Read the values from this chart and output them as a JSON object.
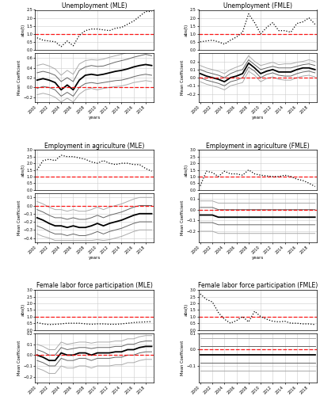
{
  "titles": [
    "Unemployment (MLE)",
    "Unemployment (FMLE)",
    "Employment in agriculture (MLE)",
    "Employment in agriculture (FMLE)",
    "Female labor force participation (MLE)",
    "Female labor force participation (FMLE)"
  ],
  "years": [
    2000,
    2001,
    2002,
    2003,
    2004,
    2005,
    2006,
    2007,
    2008,
    2009,
    2010,
    2011,
    2012,
    2013,
    2014,
    2015,
    2016,
    2017,
    2018,
    2019
  ],
  "red_dashed_value": 1.0,
  "red_dashed_coef": 0.0,
  "panels": [
    {
      "abs_t": [
        0.75,
        0.6,
        0.55,
        0.5,
        0.2,
        0.55,
        0.25,
        0.9,
        1.2,
        1.3,
        1.3,
        1.25,
        1.2,
        1.35,
        1.4,
        1.6,
        1.8,
        2.1,
        2.4,
        2.4
      ],
      "coef_main": [
        0.15,
        0.18,
        0.15,
        0.1,
        -0.05,
        0.05,
        -0.05,
        0.15,
        0.25,
        0.27,
        0.25,
        0.27,
        0.3,
        0.33,
        0.35,
        0.38,
        0.42,
        0.45,
        0.47,
        0.45
      ],
      "coef_upper1": [
        0.3,
        0.33,
        0.3,
        0.25,
        0.12,
        0.2,
        0.12,
        0.35,
        0.42,
        0.45,
        0.43,
        0.44,
        0.48,
        0.52,
        0.55,
        0.58,
        0.62,
        0.65,
        0.68,
        0.65
      ],
      "coef_upper2": [
        0.45,
        0.48,
        0.44,
        0.38,
        0.25,
        0.35,
        0.27,
        0.48,
        0.55,
        0.57,
        0.56,
        0.58,
        0.62,
        0.65,
        0.68,
        0.72,
        0.75,
        0.78,
        0.82,
        0.78
      ],
      "coef_lower1": [
        -0.02,
        0.02,
        0.0,
        -0.05,
        -0.18,
        -0.1,
        -0.18,
        0.0,
        0.08,
        0.1,
        0.08,
        0.1,
        0.12,
        0.14,
        0.15,
        0.18,
        0.22,
        0.25,
        0.27,
        0.25
      ],
      "coef_lower2": [
        -0.15,
        -0.12,
        -0.15,
        -0.2,
        -0.3,
        -0.22,
        -0.3,
        -0.14,
        -0.05,
        -0.02,
        -0.05,
        -0.02,
        0.0,
        0.02,
        0.03,
        0.06,
        0.1,
        0.12,
        0.14,
        0.12
      ],
      "abs_ylim": [
        0,
        2.5
      ],
      "abs_yticks": [
        0.0,
        0.5,
        1.0,
        1.5,
        2.0,
        2.5
      ],
      "coef_ylim": [
        -0.3,
        0.7
      ],
      "coef_yticks": [
        -0.2,
        0.0,
        0.2,
        0.4,
        0.6
      ]
    },
    {
      "abs_t": [
        0.5,
        0.55,
        0.6,
        0.5,
        0.35,
        0.6,
        0.8,
        1.1,
        2.25,
        1.7,
        1.0,
        1.4,
        1.7,
        1.2,
        1.2,
        1.1,
        1.65,
        1.75,
        2.0,
        1.6
      ],
      "coef_main": [
        0.05,
        0.02,
        0.0,
        -0.02,
        -0.05,
        0.0,
        0.02,
        0.05,
        0.18,
        0.12,
        0.05,
        0.08,
        0.1,
        0.07,
        0.07,
        0.07,
        0.1,
        0.12,
        0.12,
        0.1
      ],
      "coef_upper1": [
        0.1,
        0.07,
        0.05,
        0.03,
        0.0,
        0.05,
        0.08,
        0.1,
        0.22,
        0.16,
        0.1,
        0.12,
        0.14,
        0.12,
        0.12,
        0.12,
        0.14,
        0.16,
        0.17,
        0.15
      ],
      "coef_upper2": [
        0.15,
        0.12,
        0.1,
        0.08,
        0.05,
        0.1,
        0.13,
        0.16,
        0.27,
        0.2,
        0.15,
        0.17,
        0.19,
        0.16,
        0.17,
        0.17,
        0.19,
        0.2,
        0.22,
        0.2
      ],
      "coef_lower1": [
        0.0,
        -0.03,
        -0.05,
        -0.07,
        -0.1,
        -0.05,
        -0.03,
        0.0,
        0.13,
        0.08,
        0.0,
        0.04,
        0.06,
        0.03,
        0.02,
        0.02,
        0.05,
        0.07,
        0.08,
        0.06
      ],
      "coef_lower2": [
        -0.05,
        -0.08,
        -0.1,
        -0.12,
        -0.15,
        -0.1,
        -0.08,
        -0.06,
        0.08,
        0.03,
        -0.05,
        -0.01,
        0.01,
        -0.02,
        -0.03,
        -0.03,
        0.0,
        0.02,
        0.03,
        0.01
      ],
      "abs_ylim": [
        0,
        2.5
      ],
      "abs_yticks": [
        0.0,
        0.5,
        1.0,
        1.5,
        2.0,
        2.5
      ],
      "coef_ylim": [
        -0.3,
        0.3
      ],
      "coef_yticks": [
        -0.2,
        -0.1,
        0.0,
        0.1,
        0.2
      ]
    },
    {
      "abs_t": [
        1.5,
        2.2,
        2.3,
        2.2,
        2.6,
        2.5,
        2.5,
        2.4,
        2.3,
        2.1,
        2.0,
        2.2,
        2.0,
        1.9,
        2.0,
        2.0,
        1.9,
        1.9,
        1.6,
        1.4
      ],
      "coef_main": [
        -0.15,
        -0.18,
        -0.22,
        -0.25,
        -0.25,
        -0.27,
        -0.25,
        -0.27,
        -0.27,
        -0.25,
        -0.22,
        -0.25,
        -0.22,
        -0.2,
        -0.18,
        -0.15,
        -0.12,
        -0.1,
        -0.1,
        -0.1
      ],
      "coef_upper1": [
        -0.05,
        -0.08,
        -0.12,
        -0.15,
        -0.15,
        -0.17,
        -0.15,
        -0.17,
        -0.17,
        -0.15,
        -0.12,
        -0.15,
        -0.12,
        -0.1,
        -0.08,
        -0.05,
        -0.02,
        0.0,
        0.0,
        0.0
      ],
      "coef_upper2": [
        0.05,
        0.02,
        -0.02,
        -0.05,
        -0.05,
        -0.07,
        -0.05,
        -0.07,
        -0.07,
        -0.05,
        -0.02,
        -0.05,
        -0.02,
        0.0,
        0.02,
        0.05,
        0.08,
        0.1,
        0.1,
        0.1
      ],
      "coef_lower1": [
        -0.25,
        -0.28,
        -0.32,
        -0.35,
        -0.35,
        -0.37,
        -0.35,
        -0.37,
        -0.37,
        -0.35,
        -0.32,
        -0.35,
        -0.32,
        -0.3,
        -0.28,
        -0.25,
        -0.22,
        -0.2,
        -0.2,
        -0.2
      ],
      "coef_lower2": [
        -0.35,
        -0.38,
        -0.4,
        -0.43,
        -0.43,
        -0.43,
        -0.43,
        -0.43,
        -0.43,
        -0.43,
        -0.42,
        -0.43,
        -0.42,
        -0.4,
        -0.38,
        -0.35,
        -0.32,
        -0.3,
        -0.3,
        -0.3
      ],
      "abs_ylim": [
        0,
        3.0
      ],
      "abs_yticks": [
        0.0,
        0.5,
        1.0,
        1.5,
        2.0,
        2.5,
        3.0
      ],
      "coef_ylim": [
        -0.45,
        0.15
      ],
      "coef_yticks": [
        -0.4,
        -0.3,
        -0.2,
        -0.1,
        0.0,
        0.1
      ]
    },
    {
      "abs_t": [
        0.3,
        1.4,
        1.3,
        1.0,
        1.4,
        1.2,
        1.2,
        1.1,
        1.5,
        1.2,
        1.1,
        1.05,
        1.0,
        1.0,
        1.1,
        1.0,
        0.8,
        0.7,
        0.5,
        0.25
      ],
      "coef_main": [
        -0.05,
        -0.05,
        -0.05,
        -0.07,
        -0.07,
        -0.07,
        -0.07,
        -0.07,
        -0.07,
        -0.07,
        -0.07,
        -0.07,
        -0.07,
        -0.07,
        -0.07,
        -0.07,
        -0.07,
        -0.07,
        -0.07,
        -0.07
      ],
      "coef_upper1": [
        0.02,
        0.02,
        0.02,
        0.0,
        0.0,
        0.0,
        0.0,
        0.0,
        0.0,
        0.0,
        0.0,
        0.0,
        0.0,
        0.0,
        0.0,
        0.0,
        0.0,
        0.0,
        0.0,
        0.0
      ],
      "coef_upper2": [
        0.08,
        0.08,
        0.08,
        0.06,
        0.06,
        0.06,
        0.06,
        0.06,
        0.06,
        0.06,
        0.06,
        0.06,
        0.06,
        0.06,
        0.06,
        0.06,
        0.06,
        0.06,
        0.06,
        0.06
      ],
      "coef_lower1": [
        -0.12,
        -0.12,
        -0.12,
        -0.14,
        -0.14,
        -0.14,
        -0.14,
        -0.14,
        -0.14,
        -0.14,
        -0.14,
        -0.14,
        -0.14,
        -0.14,
        -0.14,
        -0.14,
        -0.14,
        -0.14,
        -0.14,
        -0.14
      ],
      "coef_lower2": [
        -0.2,
        -0.2,
        -0.2,
        -0.22,
        -0.22,
        -0.22,
        -0.22,
        -0.22,
        -0.22,
        -0.22,
        -0.22,
        -0.22,
        -0.22,
        -0.22,
        -0.22,
        -0.22,
        -0.22,
        -0.22,
        -0.22,
        -0.22
      ],
      "abs_ylim": [
        0,
        3.0
      ],
      "abs_yticks": [
        0.0,
        0.5,
        1.0,
        1.5,
        2.0,
        2.5,
        3.0
      ],
      "coef_ylim": [
        -0.3,
        0.15
      ],
      "coef_yticks": [
        -0.2,
        -0.1,
        0.0,
        0.1
      ]
    },
    {
      "abs_t": [
        0.55,
        0.45,
        0.4,
        0.42,
        0.45,
        0.5,
        0.5,
        0.5,
        0.45,
        0.42,
        0.45,
        0.45,
        0.42,
        0.42,
        0.45,
        0.5,
        0.55,
        0.58,
        0.6,
        0.62
      ],
      "coef_main": [
        0.0,
        -0.02,
        -0.05,
        -0.05,
        0.02,
        0.0,
        0.0,
        0.02,
        0.02,
        0.0,
        0.02,
        0.02,
        0.02,
        0.03,
        0.03,
        0.05,
        0.05,
        0.07,
        0.08,
        0.08
      ],
      "coef_upper1": [
        0.05,
        0.03,
        0.0,
        0.0,
        0.07,
        0.05,
        0.06,
        0.07,
        0.07,
        0.06,
        0.07,
        0.07,
        0.07,
        0.08,
        0.08,
        0.1,
        0.1,
        0.12,
        0.13,
        0.13
      ],
      "coef_upper2": [
        0.1,
        0.08,
        0.05,
        0.05,
        0.12,
        0.1,
        0.11,
        0.12,
        0.12,
        0.11,
        0.12,
        0.12,
        0.12,
        0.13,
        0.13,
        0.15,
        0.15,
        0.17,
        0.18,
        0.18
      ],
      "coef_lower1": [
        -0.05,
        -0.07,
        -0.1,
        -0.1,
        -0.03,
        -0.05,
        -0.05,
        -0.03,
        -0.03,
        -0.05,
        -0.03,
        -0.03,
        -0.03,
        -0.02,
        -0.02,
        0.0,
        0.0,
        0.02,
        0.03,
        0.03
      ],
      "coef_lower2": [
        -0.12,
        -0.14,
        -0.17,
        -0.17,
        -0.1,
        -0.12,
        -0.12,
        -0.1,
        -0.1,
        -0.12,
        -0.1,
        -0.1,
        -0.1,
        -0.09,
        -0.09,
        -0.07,
        -0.07,
        -0.05,
        -0.04,
        -0.04
      ],
      "abs_ylim": [
        0,
        3.0
      ],
      "abs_yticks": [
        0.0,
        0.5,
        1.0,
        1.5,
        2.0,
        2.5,
        3.0
      ],
      "coef_ylim": [
        -0.25,
        0.2
      ],
      "coef_yticks": [
        -0.2,
        -0.1,
        0.0,
        0.1,
        0.2
      ]
    },
    {
      "abs_t": [
        2.7,
        2.3,
        2.1,
        1.3,
        0.8,
        0.5,
        0.7,
        1.0,
        0.6,
        1.4,
        1.0,
        0.8,
        0.65,
        0.6,
        0.65,
        0.5,
        0.5,
        0.45,
        0.45,
        0.4
      ],
      "coef_main": [
        -0.03,
        -0.03,
        -0.03,
        -0.03,
        -0.03,
        -0.03,
        -0.03,
        -0.03,
        -0.03,
        -0.03,
        -0.03,
        -0.03,
        -0.03,
        -0.03,
        -0.03,
        -0.03,
        -0.03,
        -0.03,
        -0.03,
        -0.03
      ],
      "coef_upper1": [
        0.02,
        0.02,
        0.02,
        0.02,
        0.02,
        0.02,
        0.02,
        0.02,
        0.02,
        0.02,
        0.02,
        0.02,
        0.02,
        0.02,
        0.02,
        0.02,
        0.02,
        0.02,
        0.02,
        0.02
      ],
      "coef_upper2": [
        0.07,
        0.07,
        0.07,
        0.07,
        0.07,
        0.07,
        0.07,
        0.07,
        0.07,
        0.07,
        0.07,
        0.07,
        0.07,
        0.07,
        0.07,
        0.07,
        0.07,
        0.07,
        0.07,
        0.07
      ],
      "coef_lower1": [
        -0.08,
        -0.08,
        -0.08,
        -0.08,
        -0.08,
        -0.08,
        -0.08,
        -0.08,
        -0.08,
        -0.08,
        -0.08,
        -0.08,
        -0.08,
        -0.08,
        -0.08,
        -0.08,
        -0.08,
        -0.08,
        -0.08,
        -0.08
      ],
      "coef_lower2": [
        -0.13,
        -0.13,
        -0.13,
        -0.13,
        -0.13,
        -0.13,
        -0.13,
        -0.13,
        -0.13,
        -0.13,
        -0.13,
        -0.13,
        -0.13,
        -0.13,
        -0.13,
        -0.13,
        -0.13,
        -0.13,
        -0.13,
        -0.13
      ],
      "abs_ylim": [
        0,
        3.0
      ],
      "abs_yticks": [
        0.0,
        0.5,
        1.0,
        1.5,
        2.0,
        2.5,
        3.0
      ],
      "coef_ylim": [
        -0.2,
        0.1
      ],
      "coef_yticks": [
        -0.1,
        0.0,
        0.1
      ]
    }
  ]
}
